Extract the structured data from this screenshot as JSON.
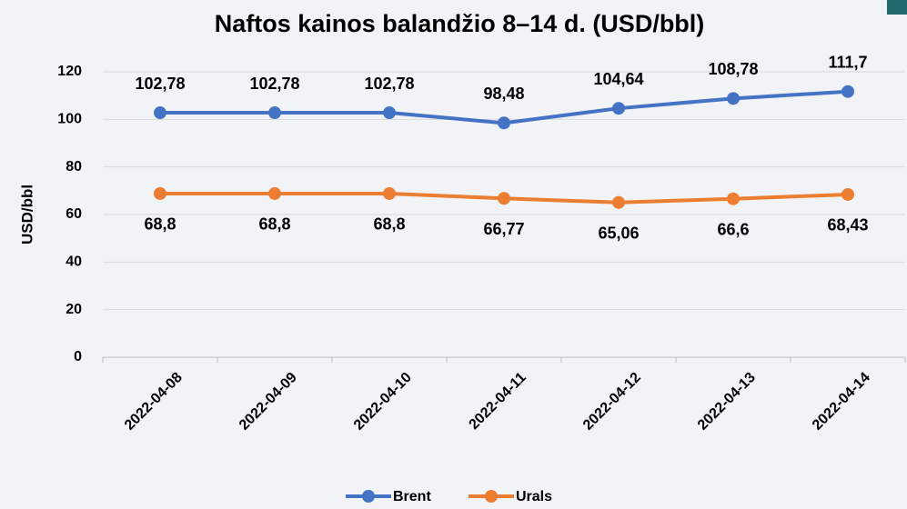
{
  "chart_data": {
    "type": "line",
    "title": "Naftos kainos balandžio 8–14 d. (USD/bbl)",
    "y_label": "USD/bbl",
    "categories": [
      "2022-04-08",
      "2022-04-09",
      "2022-04-10",
      "2022-04-11",
      "2022-04-12",
      "2022-04-13",
      "2022-04-14"
    ],
    "series": [
      {
        "name": "Brent",
        "color": "#4472c4",
        "values": [
          102.78,
          102.78,
          102.78,
          98.48,
          104.64,
          108.78,
          111.7
        ],
        "value_labels": [
          "102,78",
          "102,78",
          "102,78",
          "98,48",
          "104,64",
          "108,78",
          "111,7"
        ],
        "label_position": "above"
      },
      {
        "name": "Urals",
        "color": "#ed7d31",
        "values": [
          68.8,
          68.8,
          68.8,
          66.77,
          65.06,
          66.6,
          68.43
        ],
        "value_labels": [
          "68,8",
          "68,8",
          "68,8",
          "66,77",
          "65,06",
          "66,6",
          "68,43"
        ],
        "label_position": "below"
      }
    ],
    "ylim": [
      0,
      120
    ],
    "yticks": [
      0,
      20,
      40,
      60,
      80,
      100,
      120
    ],
    "grid": true,
    "legend": "bottom"
  }
}
